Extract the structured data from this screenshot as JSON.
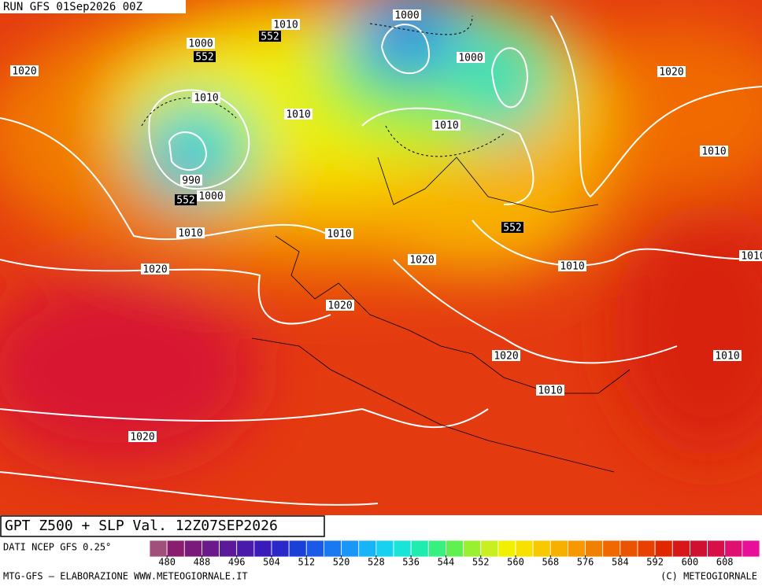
{
  "header": {
    "run": "RUN GFS 01Sep2026 00Z"
  },
  "map": {
    "contour_labels": [
      "1010",
      "552",
      "1000",
      "1000",
      "552",
      "1020",
      "1000",
      "1020",
      "1010",
      "1010",
      "1010",
      "1010",
      "990",
      "552",
      "1000",
      "552",
      "1010",
      "1010",
      "1020",
      "1010",
      "1010",
      "1020",
      "1020",
      "1020",
      "1010",
      "1010",
      "1020"
    ]
  },
  "footer": {
    "title": "GPT Z500 + SLP Val. 12Z07SEP2026",
    "source": "DATI NCEP GFS 0.25°",
    "credit_left": "MTG-GFS — ELABORAZIONE WWW.METEOGIORNALE.IT",
    "credit_right": "(C) METEOGIORNALE"
  },
  "colorbar": {
    "lim": [
      476,
      616
    ],
    "ticks": [
      480,
      488,
      496,
      504,
      512,
      520,
      528,
      536,
      544,
      552,
      560,
      568,
      576,
      584,
      592,
      600,
      608
    ],
    "colors": [
      "#a0507a",
      "#8a1e6e",
      "#7a1a7a",
      "#6a1a8a",
      "#5a1a9a",
      "#4a1aaa",
      "#3a1ab8",
      "#2a28c8",
      "#1a40d8",
      "#1a5ae6",
      "#1a78f0",
      "#1a96f8",
      "#18b4f8",
      "#18d0f0",
      "#18e4d8",
      "#20ecb0",
      "#38f080",
      "#60f050",
      "#98f030",
      "#c8f020",
      "#f0f000",
      "#f8e000",
      "#f8c800",
      "#f8b000",
      "#f89800",
      "#f08000",
      "#f06800",
      "#e85400",
      "#e84000",
      "#e02800",
      "#d81818",
      "#d01030",
      "#d81048",
      "#e01070",
      "#e81098"
    ]
  }
}
